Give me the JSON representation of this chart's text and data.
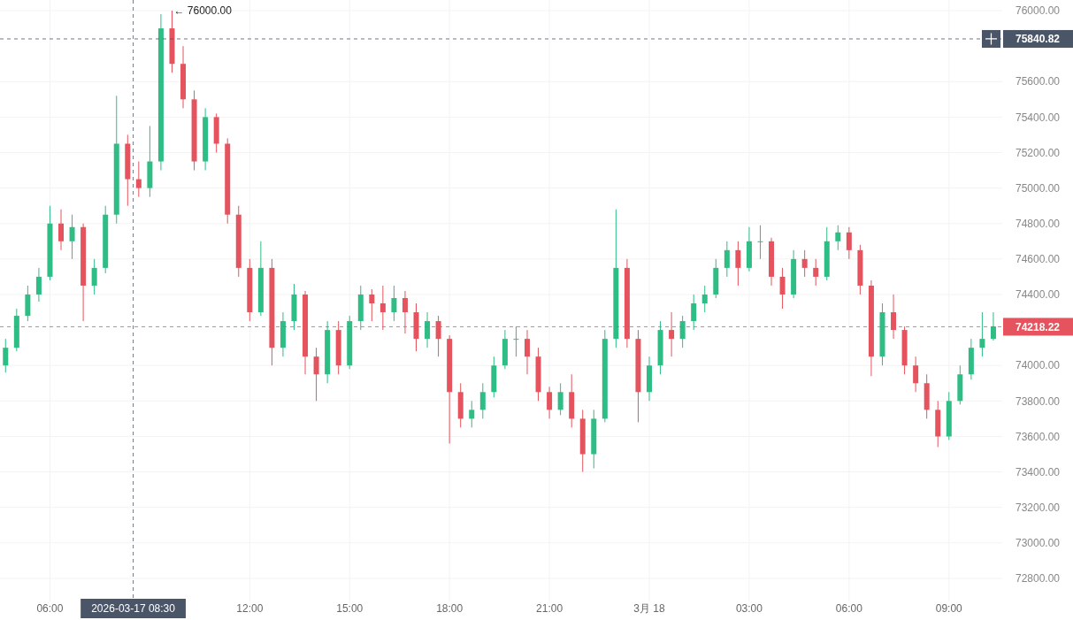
{
  "chart_data": {
    "type": "candlestick",
    "colors": [
      "#2ebd85",
      "#2ebd85",
      "#2ebd85",
      "#2ebd85",
      "#2ebd85",
      "#e5545e",
      "#2ebd85",
      "#e5545e",
      "#2ebd85",
      "#2ebd85",
      "#2ebd85",
      "#e5545e",
      "#e5545e",
      "#2ebd85",
      "#2ebd85",
      "#e5545e",
      "#e5545e",
      "#e5545e",
      "#2ebd85",
      "#e5545e",
      "#e5545e",
      "#e5545e",
      "#e5545e",
      "#2ebd85",
      "#e5545e",
      "#2ebd85",
      "#2ebd85",
      "#e5545e",
      "#e5545e",
      "#2ebd85",
      "#e5545e",
      "#2ebd85",
      "#2ebd85",
      "#e5545e",
      "#e5545e",
      "#2ebd85",
      "#e5545e",
      "#e5545e",
      "#2ebd85",
      "#e5545e",
      "#e5545e",
      "#e5545e",
      "#2ebd85",
      "#2ebd85",
      "#2ebd85",
      "#2ebd85",
      "#2ebd85",
      "#e5545e",
      "#e5545e",
      "#e5545e",
      "#2ebd85",
      "#e5545e",
      "#e5545e",
      "#2ebd85",
      "#2ebd85",
      "#2ebd85",
      "#e5545e",
      "#e5545e",
      "#2ebd85",
      "#2ebd85",
      "#e5545e",
      "#2ebd85",
      "#2ebd85",
      "#2ebd85",
      "#2ebd85",
      "#2ebd85",
      "#e5545e",
      "#2ebd85",
      "#2ebd85",
      "#e5545e",
      "#e5545e",
      "#2ebd85",
      "#e5545e",
      "#e5545e",
      "#2ebd85",
      "#2ebd85",
      "#e5545e",
      "#e5545e",
      "#e5545e",
      "#2ebd85",
      "#e5545e",
      "#e5545e",
      "#e5545e",
      "#e5545e",
      "#e5545e",
      "#2ebd85",
      "#2ebd85",
      "#2ebd85",
      "#2ebd85",
      "#2ebd85"
    ],
    "x": [
      "2026-03-17T04:40",
      "2026-03-17T05:00",
      "2026-03-17T05:20",
      "2026-03-17T05:40",
      "2026-03-17T06:00",
      "2026-03-17T06:20",
      "2026-03-17T06:40",
      "2026-03-17T07:00",
      "2026-03-17T07:20",
      "2026-03-17T07:40",
      "2026-03-17T08:00",
      "2026-03-17T08:20",
      "2026-03-17T08:40",
      "2026-03-17T09:00",
      "2026-03-17T09:20",
      "2026-03-17T09:40",
      "2026-03-17T10:00",
      "2026-03-17T10:20",
      "2026-03-17T10:40",
      "2026-03-17T11:00",
      "2026-03-17T11:20",
      "2026-03-17T11:40",
      "2026-03-17T12:00",
      "2026-03-17T12:20",
      "2026-03-17T12:40",
      "2026-03-17T13:00",
      "2026-03-17T13:20",
      "2026-03-17T13:40",
      "2026-03-17T14:00",
      "2026-03-17T14:20",
      "2026-03-17T14:40",
      "2026-03-17T15:00",
      "2026-03-17T15:20",
      "2026-03-17T15:40",
      "2026-03-17T16:00",
      "2026-03-17T16:20",
      "2026-03-17T16:40",
      "2026-03-17T17:00",
      "2026-03-17T17:20",
      "2026-03-17T17:40",
      "2026-03-17T18:00",
      "2026-03-17T18:20",
      "2026-03-17T18:40",
      "2026-03-17T19:00",
      "2026-03-17T19:20",
      "2026-03-17T19:40",
      "2026-03-17T20:00",
      "2026-03-17T20:20",
      "2026-03-17T20:40",
      "2026-03-17T21:00",
      "2026-03-17T21:20",
      "2026-03-17T21:40",
      "2026-03-17T22:00",
      "2026-03-17T22:20",
      "2026-03-17T22:40",
      "2026-03-17T23:00",
      "2026-03-17T23:20",
      "2026-03-17T23:40",
      "2026-03-18T00:00",
      "2026-03-18T00:20",
      "2026-03-18T00:40",
      "2026-03-18T01:00",
      "2026-03-18T01:20",
      "2026-03-18T01:40",
      "2026-03-18T02:00",
      "2026-03-18T02:20",
      "2026-03-18T02:40",
      "2026-03-18T03:00",
      "2026-03-18T03:20",
      "2026-03-18T03:40",
      "2026-03-18T04:00",
      "2026-03-18T04:20",
      "2026-03-18T04:40",
      "2026-03-18T05:00",
      "2026-03-18T05:20",
      "2026-03-18T05:40",
      "2026-03-18T06:00",
      "2026-03-18T06:20",
      "2026-03-18T06:40",
      "2026-03-18T07:00",
      "2026-03-18T07:20",
      "2026-03-18T07:40",
      "2026-03-18T08:00",
      "2026-03-18T08:20",
      "2026-03-18T08:40",
      "2026-03-18T09:00",
      "2026-03-18T09:20",
      "2026-03-18T09:40",
      "2026-03-18T10:00",
      "2026-03-18T10:20"
    ],
    "ohlc": [
      [
        74000,
        74150,
        73960,
        74100
      ],
      [
        74100,
        74320,
        74080,
        74280
      ],
      [
        74280,
        74450,
        74250,
        74400
      ],
      [
        74400,
        74550,
        74360,
        74500
      ],
      [
        74500,
        74900,
        74480,
        74800
      ],
      [
        74800,
        74880,
        74650,
        74700
      ],
      [
        74700,
        74850,
        74600,
        74780
      ],
      [
        74780,
        74800,
        74250,
        74450
      ],
      [
        74450,
        74600,
        74400,
        74550
      ],
      [
        74550,
        74900,
        74520,
        74850
      ],
      [
        74850,
        75520,
        74800,
        75250
      ],
      [
        75250,
        75300,
        74900,
        75050
      ],
      [
        75050,
        75150,
        74950,
        75000
      ],
      [
        75000,
        75350,
        74950,
        75150
      ],
      [
        75150,
        75980,
        75100,
        75900
      ],
      [
        75900,
        76000,
        75650,
        75700
      ],
      [
        75700,
        75800,
        75450,
        75500
      ],
      [
        75500,
        75550,
        75100,
        75150
      ],
      [
        75150,
        75450,
        75100,
        75400
      ],
      [
        75400,
        75420,
        75200,
        75250
      ],
      [
        75250,
        75280,
        74800,
        74850
      ],
      [
        74850,
        74900,
        74500,
        74550
      ],
      [
        74550,
        74600,
        74250,
        74300
      ],
      [
        74300,
        74700,
        74280,
        74550
      ],
      [
        74550,
        74600,
        74000,
        74100
      ],
      [
        74100,
        74300,
        74050,
        74250
      ],
      [
        74250,
        74460,
        74200,
        74400
      ],
      [
        74400,
        74420,
        73950,
        74050
      ],
      [
        74050,
        74100,
        73800,
        73950
      ],
      [
        73950,
        74250,
        73900,
        74200
      ],
      [
        74200,
        74250,
        73950,
        74000
      ],
      [
        74000,
        74280,
        73980,
        74250
      ],
      [
        74250,
        74450,
        74200,
        74400
      ],
      [
        74400,
        74430,
        74250,
        74350
      ],
      [
        74350,
        74450,
        74200,
        74300
      ],
      [
        74300,
        74450,
        74250,
        74380
      ],
      [
        74380,
        74420,
        74180,
        74300
      ],
      [
        74300,
        74350,
        74080,
        74150
      ],
      [
        74150,
        74300,
        74100,
        74250
      ],
      [
        74250,
        74280,
        74050,
        74150
      ],
      [
        74150,
        74170,
        73560,
        73850
      ],
      [
        73850,
        73900,
        73650,
        73700
      ],
      [
        73700,
        73800,
        73650,
        73750
      ],
      [
        73750,
        73900,
        73700,
        73850
      ],
      [
        73850,
        74050,
        73820,
        74000
      ],
      [
        74000,
        74200,
        73980,
        74150
      ],
      [
        74150,
        74220,
        74050,
        74150
      ],
      [
        74150,
        74200,
        73950,
        74050
      ],
      [
        74050,
        74100,
        73800,
        73850
      ],
      [
        73850,
        73880,
        73700,
        73750
      ],
      [
        73750,
        73900,
        73720,
        73850
      ],
      [
        73850,
        73950,
        73650,
        73700
      ],
      [
        73700,
        73750,
        73400,
        73500
      ],
      [
        73500,
        73750,
        73420,
        73700
      ],
      [
        73700,
        74200,
        73680,
        74150
      ],
      [
        74150,
        74880,
        74100,
        74550
      ],
      [
        74550,
        74600,
        74100,
        74150
      ],
      [
        74150,
        74200,
        73680,
        73850
      ],
      [
        73850,
        74050,
        73800,
        74000
      ],
      [
        74000,
        74250,
        73950,
        74200
      ],
      [
        74200,
        74300,
        74050,
        74150
      ],
      [
        74150,
        74280,
        74100,
        74250
      ],
      [
        74250,
        74400,
        74200,
        74350
      ],
      [
        74350,
        74450,
        74300,
        74400
      ],
      [
        74400,
        74600,
        74380,
        74550
      ],
      [
        74550,
        74700,
        74500,
        74650
      ],
      [
        74650,
        74700,
        74450,
        74550
      ],
      [
        74550,
        74780,
        74530,
        74700
      ],
      [
        74700,
        74790,
        74600,
        74700
      ],
      [
        74700,
        74720,
        74450,
        74500
      ],
      [
        74500,
        74550,
        74320,
        74400
      ],
      [
        74400,
        74650,
        74380,
        74600
      ],
      [
        74600,
        74650,
        74500,
        74550
      ],
      [
        74550,
        74600,
        74450,
        74500
      ],
      [
        74500,
        74780,
        74480,
        74700
      ],
      [
        74700,
        74790,
        74650,
        74750
      ],
      [
        74750,
        74780,
        74600,
        74650
      ],
      [
        74650,
        74680,
        74400,
        74450
      ],
      [
        74450,
        74480,
        73940,
        74050
      ],
      [
        74050,
        74350,
        74000,
        74300
      ],
      [
        74300,
        74400,
        74150,
        74200
      ],
      [
        74200,
        74220,
        73950,
        74000
      ],
      [
        74000,
        74050,
        73850,
        73900
      ],
      [
        73900,
        73950,
        73700,
        73750
      ],
      [
        73750,
        73800,
        73540,
        73600
      ],
      [
        73600,
        73850,
        73580,
        73800
      ],
      [
        73800,
        74000,
        73780,
        73950
      ],
      [
        73950,
        74150,
        73920,
        74100
      ],
      [
        74100,
        74300,
        74050,
        74150
      ],
      [
        74150,
        74300,
        74140,
        74220
      ]
    ],
    "xlim": [
      "2026-03-17T04:30",
      "2026-03-18T10:36"
    ],
    "xticks": [
      {
        "value": "2026-03-17T06:00",
        "label": "06:00"
      },
      {
        "value": "2026-03-17T12:00",
        "label": "12:00"
      },
      {
        "value": "2026-03-17T15:00",
        "label": "15:00"
      },
      {
        "value": "2026-03-17T18:00",
        "label": "18:00"
      },
      {
        "value": "2026-03-17T21:00",
        "label": "21:00"
      },
      {
        "value": "2026-03-18T00:00",
        "label": "3月 18"
      },
      {
        "value": "2026-03-18T03:00",
        "label": "03:00"
      },
      {
        "value": "2026-03-18T06:00",
        "label": "06:00"
      },
      {
        "value": "2026-03-18T09:00",
        "label": "09:00"
      }
    ],
    "ylim": [
      72670,
      76060
    ],
    "yticks": [
      {
        "value": 72800,
        "label": "72800.00"
      },
      {
        "value": 73000,
        "label": "73000.00"
      },
      {
        "value": 73200,
        "label": "73200.00"
      },
      {
        "value": 73400,
        "label": "73400.00"
      },
      {
        "value": 73600,
        "label": "73600.00"
      },
      {
        "value": 73800,
        "label": "73800.00"
      },
      {
        "value": 74000,
        "label": "74000.00"
      },
      {
        "value": 74400,
        "label": "74400.00"
      },
      {
        "value": 74600,
        "label": "74600.00"
      },
      {
        "value": 74800,
        "label": "74800.00"
      },
      {
        "value": 75000,
        "label": "75000.00"
      },
      {
        "value": 75200,
        "label": "75200.00"
      },
      {
        "value": 75400,
        "label": "75400.00"
      },
      {
        "value": 75600,
        "label": "75600.00"
      },
      {
        "value": 76000,
        "label": "76000.00"
      }
    ],
    "grid": true,
    "ref_lines": [
      {
        "axis": "y",
        "value": 75840.82,
        "label": "75840.82",
        "color": "#4a5568",
        "line_style": "dashed"
      },
      {
        "axis": "y",
        "value": 74218.22,
        "label": "74218.22",
        "color": "#e5545e",
        "line_style": "dashed"
      },
      {
        "axis": "x",
        "value": "2026-03-17T08:30",
        "label": "2026-03-17 08:30",
        "color": "#4a5568",
        "line_style": "dashed"
      }
    ],
    "annotations": [
      {
        "text": "← 76000.00",
        "x": "2026-03-17T09:40",
        "y": 76000
      }
    ]
  }
}
